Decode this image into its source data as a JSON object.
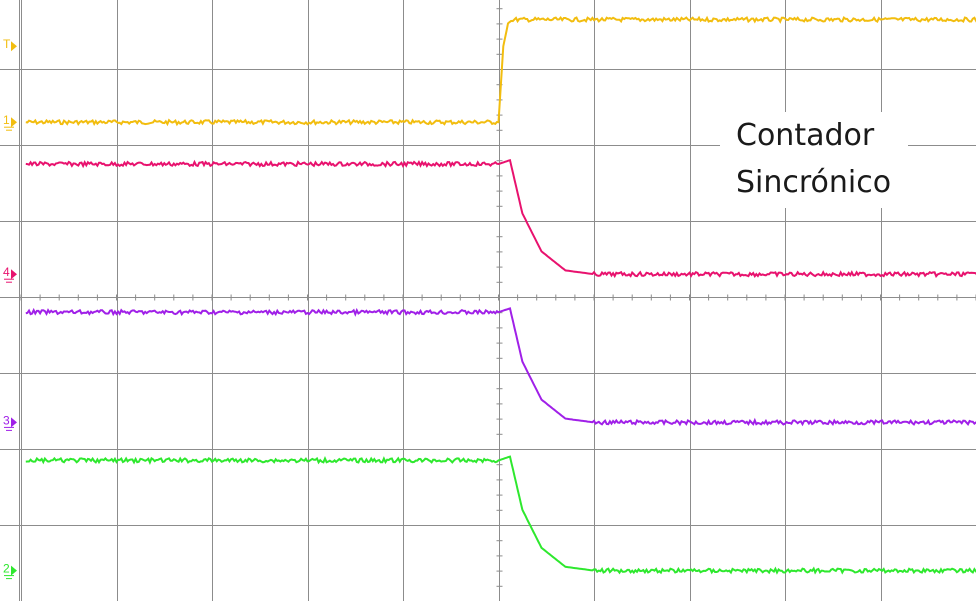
{
  "chart_data": {
    "type": "line",
    "title": "",
    "xlabel": "",
    "ylabel": "",
    "grid": true,
    "xlim": [
      0,
      10
    ],
    "ylim": [
      -4,
      4
    ],
    "annotation_lines": [
      "Contador",
      "Sincrónico"
    ],
    "trigger_marker": "T",
    "series": [
      {
        "channel": "1",
        "color": "#f2bd0f",
        "x": [
          0.05,
          5.0,
          5.05,
          5.1,
          5.15,
          10.2
        ],
        "y": [
          2.3,
          2.3,
          3.3,
          3.6,
          3.65,
          3.65
        ]
      },
      {
        "channel": "4",
        "color": "#e8126e",
        "x": [
          0.05,
          5.0,
          5.12,
          5.25,
          5.45,
          5.7,
          6.0,
          10.2
        ],
        "y": [
          1.75,
          1.75,
          1.8,
          1.1,
          0.6,
          0.35,
          0.3,
          0.3
        ]
      },
      {
        "channel": "3",
        "color": "#a020e8",
        "x": [
          0.05,
          5.0,
          5.12,
          5.25,
          5.45,
          5.7,
          6.0,
          10.2
        ],
        "y": [
          -0.2,
          -0.2,
          -0.15,
          -0.85,
          -1.35,
          -1.6,
          -1.65,
          -1.65
        ]
      },
      {
        "channel": "2",
        "color": "#2ee82e",
        "x": [
          0.05,
          5.0,
          5.12,
          5.25,
          5.45,
          5.7,
          6.0,
          10.2
        ],
        "y": [
          -2.15,
          -2.15,
          -2.1,
          -2.8,
          -3.3,
          -3.55,
          -3.6,
          -3.6
        ]
      }
    ],
    "channel_markers": [
      {
        "label": "T",
        "color": "#f2bd0f",
        "y": 3.3
      },
      {
        "label": "1",
        "color": "#f2bd0f",
        "y": 2.3
      },
      {
        "label": "4",
        "color": "#e8126e",
        "y": 0.3
      },
      {
        "label": "3",
        "color": "#a020e8",
        "y": -1.65
      },
      {
        "label": "2",
        "color": "#2ee82e",
        "y": -3.6
      }
    ]
  }
}
